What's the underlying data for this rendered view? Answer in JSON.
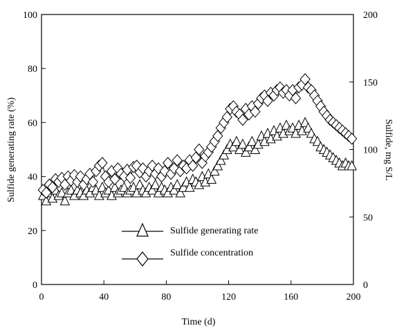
{
  "chart_data": {
    "type": "line",
    "title": "",
    "xlabel": "Time (d)",
    "ylabel_left": "Sulfide generating rate (%)",
    "ylabel_right": "Sulfide, mg S/L",
    "xlim": [
      0,
      200
    ],
    "ylim_left": [
      0,
      100
    ],
    "ylim_right": [
      0,
      200
    ],
    "x_ticks": [
      0,
      40,
      80,
      120,
      160,
      200
    ],
    "y_ticks_left": [
      0,
      20,
      40,
      60,
      80,
      100
    ],
    "y_ticks_right": [
      0,
      50,
      100,
      150,
      200
    ],
    "grid": false,
    "legend_position": "lower-center",
    "series": [
      {
        "name": "Sulfide generating rate",
        "marker": "triangle",
        "axis": "left",
        "points": [
          [
            1,
            33
          ],
          [
            3,
            31
          ],
          [
            5,
            34
          ],
          [
            7,
            32
          ],
          [
            9,
            35
          ],
          [
            11,
            33
          ],
          [
            13,
            34
          ],
          [
            15,
            31
          ],
          [
            17,
            34
          ],
          [
            19,
            35
          ],
          [
            21,
            33
          ],
          [
            23,
            35
          ],
          [
            25,
            34
          ],
          [
            27,
            33
          ],
          [
            29,
            35
          ],
          [
            31,
            34
          ],
          [
            33,
            36
          ],
          [
            35,
            35
          ],
          [
            37,
            33
          ],
          [
            39,
            36
          ],
          [
            41,
            34
          ],
          [
            43,
            35
          ],
          [
            45,
            33
          ],
          [
            47,
            36
          ],
          [
            49,
            34
          ],
          [
            51,
            35
          ],
          [
            53,
            36
          ],
          [
            55,
            34
          ],
          [
            57,
            35
          ],
          [
            59,
            36
          ],
          [
            61,
            34
          ],
          [
            63,
            37
          ],
          [
            65,
            35
          ],
          [
            67,
            34
          ],
          [
            69,
            36
          ],
          [
            71,
            35
          ],
          [
            73,
            37
          ],
          [
            75,
            34
          ],
          [
            77,
            36
          ],
          [
            79,
            35
          ],
          [
            81,
            34
          ],
          [
            83,
            36
          ],
          [
            85,
            35
          ],
          [
            87,
            37
          ],
          [
            89,
            34
          ],
          [
            91,
            36
          ],
          [
            93,
            38
          ],
          [
            95,
            36
          ],
          [
            97,
            39
          ],
          [
            99,
            38
          ],
          [
            101,
            37
          ],
          [
            103,
            40
          ],
          [
            105,
            38
          ],
          [
            107,
            41
          ],
          [
            109,
            39
          ],
          [
            111,
            42
          ],
          [
            113,
            44
          ],
          [
            115,
            46
          ],
          [
            117,
            48
          ],
          [
            119,
            50
          ],
          [
            121,
            52
          ],
          [
            123,
            51
          ],
          [
            125,
            53
          ],
          [
            127,
            50
          ],
          [
            129,
            52
          ],
          [
            131,
            49
          ],
          [
            133,
            51
          ],
          [
            135,
            53
          ],
          [
            137,
            50
          ],
          [
            139,
            52
          ],
          [
            141,
            55
          ],
          [
            143,
            53
          ],
          [
            145,
            56
          ],
          [
            147,
            54
          ],
          [
            149,
            57
          ],
          [
            151,
            55
          ],
          [
            153,
            58
          ],
          [
            155,
            56
          ],
          [
            157,
            59
          ],
          [
            159,
            57
          ],
          [
            161,
            58
          ],
          [
            163,
            56
          ],
          [
            165,
            59
          ],
          [
            167,
            57
          ],
          [
            169,
            60
          ],
          [
            171,
            58
          ],
          [
            173,
            56
          ],
          [
            175,
            54
          ],
          [
            177,
            53
          ],
          [
            179,
            51
          ],
          [
            181,
            50
          ],
          [
            183,
            49
          ],
          [
            185,
            48
          ],
          [
            187,
            47
          ],
          [
            189,
            46
          ],
          [
            191,
            45
          ],
          [
            193,
            44
          ],
          [
            195,
            45
          ],
          [
            197,
            44
          ],
          [
            199,
            44
          ]
        ]
      },
      {
        "name": "Sulfide concentration",
        "marker": "diamond",
        "axis": "right",
        "points": [
          [
            1,
            70
          ],
          [
            3,
            68
          ],
          [
            5,
            74
          ],
          [
            7,
            72
          ],
          [
            9,
            78
          ],
          [
            11,
            76
          ],
          [
            13,
            79
          ],
          [
            15,
            74
          ],
          [
            17,
            80
          ],
          [
            19,
            77
          ],
          [
            21,
            81
          ],
          [
            23,
            76
          ],
          [
            25,
            80
          ],
          [
            27,
            74
          ],
          [
            29,
            78
          ],
          [
            31,
            82
          ],
          [
            33,
            76
          ],
          [
            35,
            84
          ],
          [
            37,
            88
          ],
          [
            39,
            90
          ],
          [
            41,
            80
          ],
          [
            43,
            76
          ],
          [
            45,
            84
          ],
          [
            47,
            78
          ],
          [
            49,
            86
          ],
          [
            51,
            82
          ],
          [
            53,
            80
          ],
          [
            55,
            85
          ],
          [
            57,
            79
          ],
          [
            59,
            87
          ],
          [
            61,
            88
          ],
          [
            63,
            83
          ],
          [
            65,
            86
          ],
          [
            67,
            80
          ],
          [
            69,
            84
          ],
          [
            71,
            88
          ],
          [
            73,
            82
          ],
          [
            75,
            86
          ],
          [
            77,
            80
          ],
          [
            79,
            84
          ],
          [
            81,
            90
          ],
          [
            83,
            82
          ],
          [
            85,
            86
          ],
          [
            87,
            92
          ],
          [
            89,
            84
          ],
          [
            91,
            88
          ],
          [
            93,
            86
          ],
          [
            95,
            92
          ],
          [
            97,
            88
          ],
          [
            99,
            94
          ],
          [
            101,
            100
          ],
          [
            103,
            90
          ],
          [
            105,
            95
          ],
          [
            107,
            98
          ],
          [
            109,
            102
          ],
          [
            111,
            106
          ],
          [
            113,
            110
          ],
          [
            115,
            116
          ],
          [
            117,
            120
          ],
          [
            119,
            124
          ],
          [
            121,
            130
          ],
          [
            123,
            132
          ],
          [
            125,
            128
          ],
          [
            127,
            126
          ],
          [
            129,
            122
          ],
          [
            131,
            130
          ],
          [
            133,
            126
          ],
          [
            135,
            132
          ],
          [
            137,
            128
          ],
          [
            139,
            134
          ],
          [
            141,
            138
          ],
          [
            143,
            140
          ],
          [
            145,
            136
          ],
          [
            147,
            142
          ],
          [
            149,
            140
          ],
          [
            151,
            144
          ],
          [
            153,
            146
          ],
          [
            155,
            142
          ],
          [
            157,
            144
          ],
          [
            159,
            140
          ],
          [
            161,
            144
          ],
          [
            163,
            138
          ],
          [
            165,
            146
          ],
          [
            167,
            148
          ],
          [
            169,
            152
          ],
          [
            171,
            146
          ],
          [
            173,
            144
          ],
          [
            175,
            140
          ],
          [
            177,
            136
          ],
          [
            179,
            132
          ],
          [
            181,
            128
          ],
          [
            183,
            125
          ],
          [
            185,
            122
          ],
          [
            187,
            120
          ],
          [
            189,
            118
          ],
          [
            191,
            116
          ],
          [
            193,
            114
          ],
          [
            195,
            112
          ],
          [
            197,
            110
          ],
          [
            199,
            108
          ]
        ]
      }
    ]
  }
}
